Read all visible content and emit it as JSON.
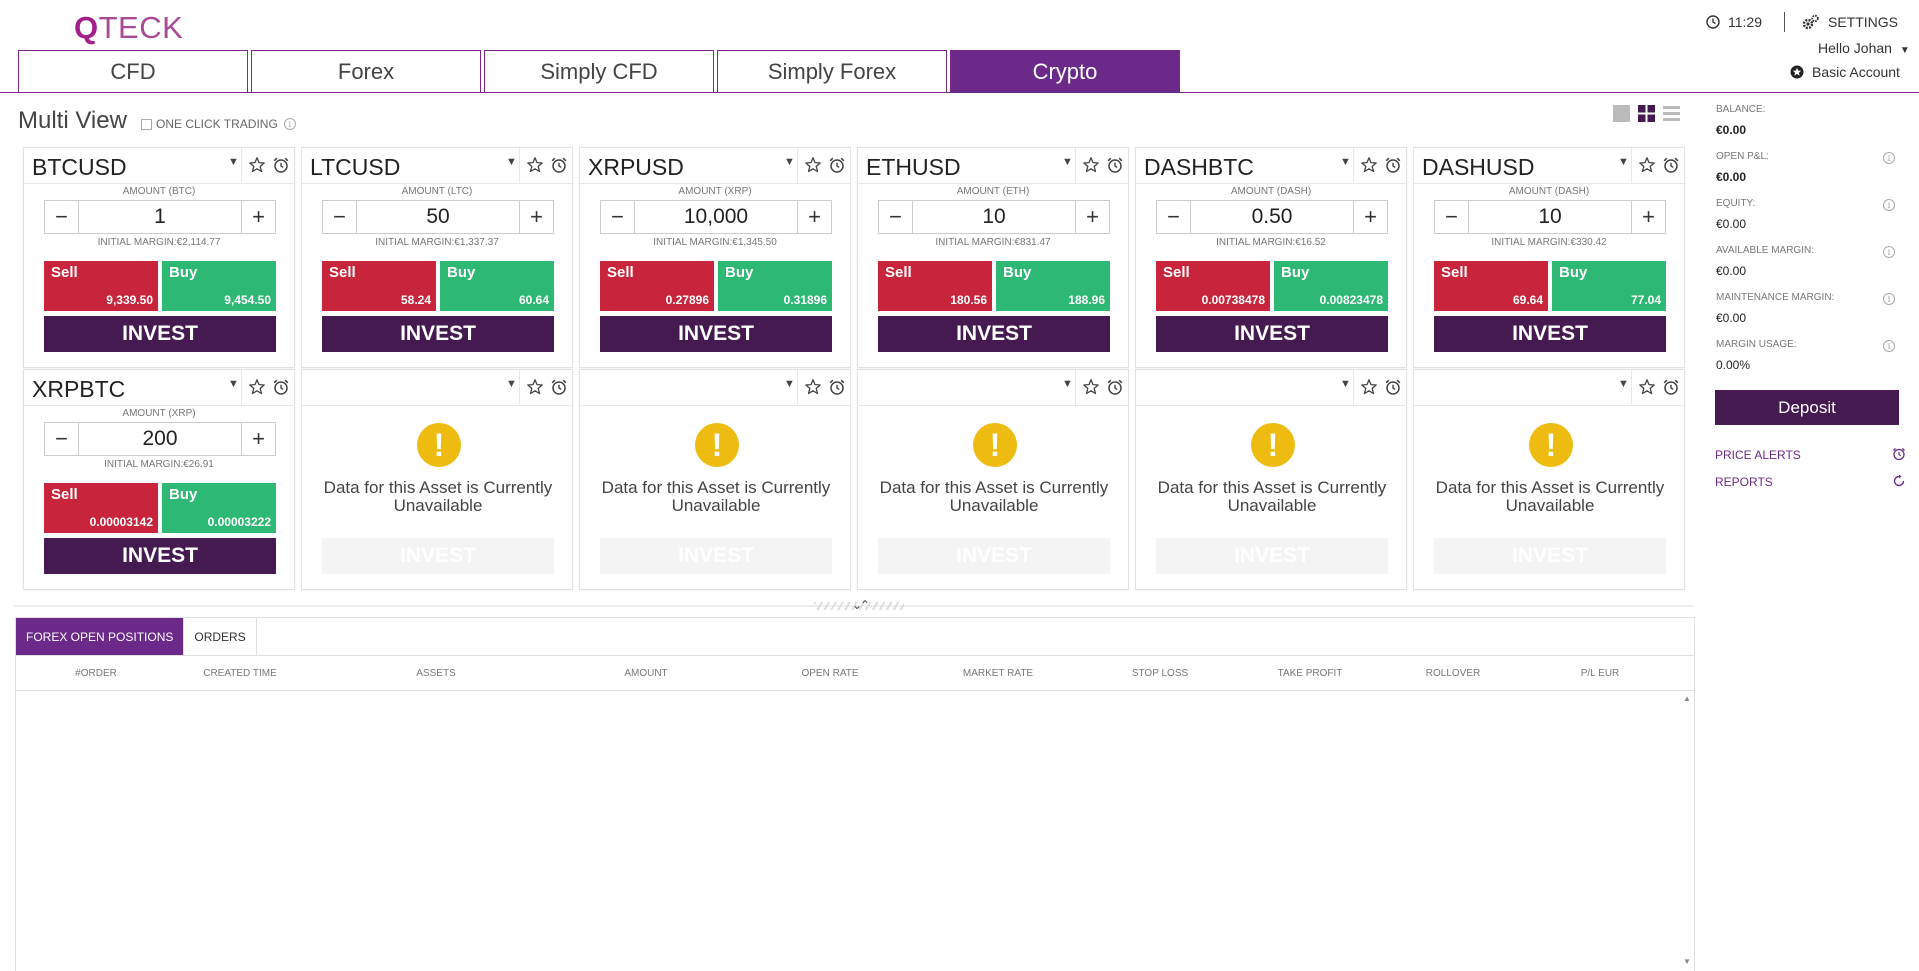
{
  "brand": {
    "logo_q": "Q",
    "logo_rest": "TECK"
  },
  "header": {
    "time": "11:29",
    "settings_label": "SETTINGS",
    "greeting": "Hello Johan",
    "account_type": "Basic Account"
  },
  "tabs": [
    {
      "label": "CFD",
      "active": false
    },
    {
      "label": "Forex",
      "active": false
    },
    {
      "label": "Simply CFD",
      "active": false
    },
    {
      "label": "Simply Forex",
      "active": false
    },
    {
      "label": "Crypto",
      "active": true
    }
  ],
  "multi_view": {
    "title": "Multi View",
    "one_click_trading": "ONE CLICK TRADING"
  },
  "widgets": [
    {
      "symbol": "BTCUSD",
      "amount_label": "AMOUNT (BTC)",
      "amount": "1",
      "margin": "INITIAL MARGIN:€2,114.77",
      "sell_label": "Sell",
      "sell": "9,339.50",
      "buy_label": "Buy",
      "buy": "9,454.50",
      "invest": "INVEST"
    },
    {
      "symbol": "LTCUSD",
      "amount_label": "AMOUNT (LTC)",
      "amount": "50",
      "margin": "INITIAL MARGIN:€1,337.37",
      "sell_label": "Sell",
      "sell": "58.24",
      "buy_label": "Buy",
      "buy": "60.64",
      "invest": "INVEST"
    },
    {
      "symbol": "XRPUSD",
      "amount_label": "AMOUNT (XRP)",
      "amount": "10,000",
      "margin": "INITIAL MARGIN:€1,345.50",
      "sell_label": "Sell",
      "sell": "0.27896",
      "buy_label": "Buy",
      "buy": "0.31896",
      "invest": "INVEST"
    },
    {
      "symbol": "ETHUSD",
      "amount_label": "AMOUNT (ETH)",
      "amount": "10",
      "margin": "INITIAL MARGIN:€831.47",
      "sell_label": "Sell",
      "sell": "180.56",
      "buy_label": "Buy",
      "buy": "188.96",
      "invest": "INVEST"
    },
    {
      "symbol": "DASHBTC",
      "amount_label": "AMOUNT (DASH)",
      "amount": "0.50",
      "margin": "INITIAL MARGIN:€16.52",
      "sell_label": "Sell",
      "sell": "0.00738478",
      "buy_label": "Buy",
      "buy": "0.00823478",
      "invest": "INVEST"
    },
    {
      "symbol": "DASHUSD",
      "amount_label": "AMOUNT (DASH)",
      "amount": "10",
      "margin": "INITIAL MARGIN:€330.42",
      "sell_label": "Sell",
      "sell": "69.64",
      "buy_label": "Buy",
      "buy": "77.04",
      "invest": "INVEST"
    },
    {
      "symbol": "XRPBTC",
      "amount_label": "AMOUNT (XRP)",
      "amount": "200",
      "margin": "INITIAL MARGIN:€26.91",
      "sell_label": "Sell",
      "sell": "0.00003142",
      "buy_label": "Buy",
      "buy": "0.00003222",
      "invest": "INVEST"
    }
  ],
  "unavailable": {
    "message": "Data for this Asset is Currently Unavailable",
    "invest": "INVEST"
  },
  "account": {
    "balance_label": "BALANCE:",
    "balance": "€0.00",
    "open_pl_label": "OPEN P&L:",
    "open_pl": "€0.00",
    "equity_label": "EQUITY:",
    "equity": "€0.00",
    "available_margin_label": "AVAILABLE MARGIN:",
    "available_margin": "€0.00",
    "maintenance_margin_label": "MAINTENANCE MARGIN:",
    "maintenance_margin": "€0.00",
    "margin_usage_label": "MARGIN USAGE:",
    "margin_usage": "0.00%",
    "deposit": "Deposit",
    "price_alerts": "PRICE ALERTS",
    "reports": "REPORTS"
  },
  "positions": {
    "tabs": [
      {
        "label": "FOREX OPEN POSITIONS",
        "active": true
      },
      {
        "label": "ORDERS",
        "active": false
      }
    ],
    "columns": [
      "#ORDER",
      "CREATED TIME",
      "ASSETS",
      "AMOUNT",
      "OPEN RATE",
      "MARKET RATE",
      "STOP LOSS",
      "TAKE PROFIT",
      "ROLLOVER",
      "P/L EUR"
    ]
  },
  "colors": {
    "brand": "#a3208a",
    "tab_active": "#6b2a8a",
    "invest": "#451a50",
    "sell": "#c8243b",
    "buy": "#2db873",
    "warning": "#eebc11"
  }
}
